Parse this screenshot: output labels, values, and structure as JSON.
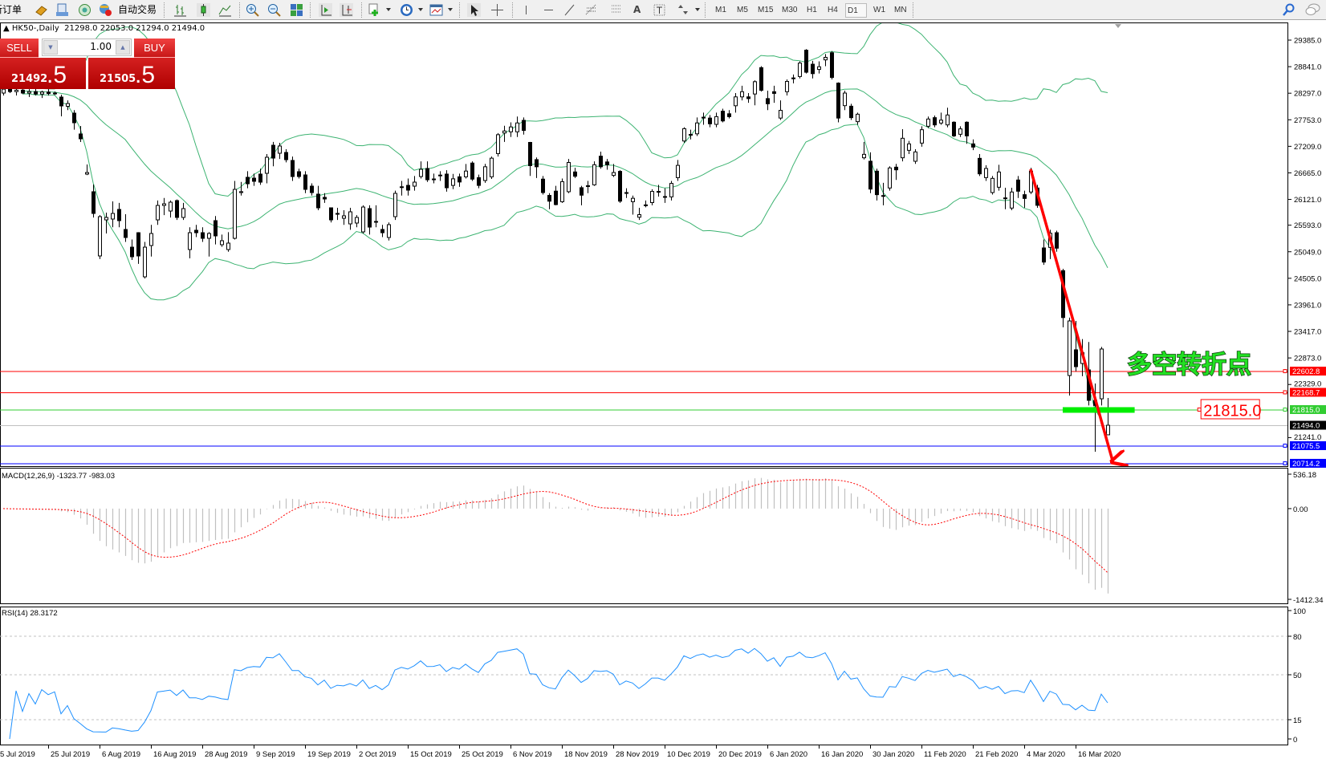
{
  "toolbar": {
    "new_order": "新订单",
    "auto_trade": "自动交易",
    "icons": [
      "gold-icon",
      "history-center-icon",
      "signal-icon",
      "auto-trade-icon",
      "bar-chart-icon",
      "candlestick-icon",
      "line-chart-icon",
      "zoom-in-icon",
      "zoom-out-icon",
      "tile-windows-icon",
      "auto-scroll-icon",
      "chart-shift-icon",
      "indicators-icon",
      "periods-icon",
      "templates-icon",
      "cursor-icon",
      "crosshair-icon",
      "vertical-line-icon",
      "horizontal-line-icon",
      "trendline-icon",
      "fibonacci-icon",
      "fibo-fan-icon",
      "text-icon",
      "text-label-icon",
      "arrows-icon",
      "search-icon",
      "chat-icon"
    ],
    "timeframes": [
      "M1",
      "M5",
      "M15",
      "M30",
      "H1",
      "H4",
      "D1",
      "W1",
      "MN"
    ],
    "active_timeframe": "D1"
  },
  "chart": {
    "symbol": "HK50-,Daily",
    "open": "21298.0",
    "high": "22053.0",
    "low": "21294.0",
    "close": "21494.0"
  },
  "trade_panel": {
    "sell_label": "SELL",
    "buy_label": "BUY",
    "volume": "1.00",
    "sell_main": "21492",
    "sell_frac": ".5",
    "buy_main": "21505",
    "buy_frac": ".5",
    "color": "#d01818"
  },
  "chart_data": {
    "type": "candlestick",
    "timeframe": "Daily",
    "price_ticks": [
      29385.0,
      28841.0,
      28297.0,
      27753.0,
      27209.0,
      26665.0,
      26121.0,
      25593.0,
      25049.0,
      24505.0,
      23961.0,
      23417.0,
      22873.0,
      22329.0,
      21241.0
    ],
    "price_tick_labels": [
      "29385.0",
      "28841.0",
      "28297.0",
      "27753.0",
      "27209.0",
      "26665.0",
      "26121.0",
      "25593.0",
      "25049.0",
      "24505.0",
      "23961.0",
      "23417.0",
      "22873.0",
      "22329.0",
      "21241.0"
    ],
    "x_tick_labels": [
      "5 Jul 2019",
      "25 Jul 2019",
      "6 Aug 2019",
      "16 Aug 2019",
      "28 Aug 2019",
      "9 Sep 2019",
      "19 Sep 2019",
      "2 Oct 2019",
      "15 Oct 2019",
      "25 Oct 2019",
      "6 Nov 2019",
      "18 Nov 2019",
      "28 Nov 2019",
      "10 Dec 2019",
      "20 Dec 2019",
      "6 Jan 2020",
      "16 Jan 2020",
      "30 Jan 2020",
      "11 Feb 2020",
      "21 Feb 2020",
      "4 Mar 2020",
      "16 Mar 2020"
    ],
    "bars_per_x_tick": 8,
    "candles_ohlc": [
      [
        28300,
        28420,
        28250,
        28380
      ],
      [
        28380,
        28450,
        28300,
        28330
      ],
      [
        28330,
        28400,
        28250,
        28360
      ],
      [
        28360,
        28420,
        28280,
        28300
      ],
      [
        28300,
        28380,
        28220,
        28330
      ],
      [
        28330,
        28400,
        28250,
        28280
      ],
      [
        28280,
        28350,
        28200,
        28320
      ],
      [
        28320,
        28380,
        28250,
        28290
      ],
      [
        28290,
        28330,
        28260,
        28300
      ],
      [
        28218,
        28267,
        27823,
        28037
      ],
      [
        28029,
        28150,
        27950,
        28086
      ],
      [
        27889,
        27950,
        27550,
        27692
      ],
      [
        27462,
        27626,
        27297,
        27363
      ],
      [
        26640,
        26837,
        26620,
        26672
      ],
      [
        26278,
        26426,
        25750,
        25834
      ],
      [
        24963,
        25800,
        24900,
        25768
      ],
      [
        25702,
        25850,
        25423,
        25752
      ],
      [
        25719,
        26080,
        25550,
        25834
      ],
      [
        25916,
        26050,
        25550,
        25686
      ],
      [
        25505,
        25817,
        25250,
        25341
      ],
      [
        25143,
        25300,
        24880,
        24946
      ],
      [
        25439,
        25450,
        24800,
        24963
      ],
      [
        24535,
        25250,
        24500,
        25143
      ],
      [
        25176,
        25600,
        24950,
        25423
      ],
      [
        25702,
        26100,
        25600,
        25998
      ],
      [
        25998,
        26150,
        25800,
        26031
      ],
      [
        25883,
        26100,
        25750,
        26064
      ],
      [
        26097,
        26120,
        25700,
        25752
      ],
      [
        25752,
        26050,
        25700,
        25933
      ],
      [
        25094,
        25550,
        24913,
        25439
      ],
      [
        25489,
        25600,
        25350,
        25439
      ],
      [
        25439,
        25550,
        25250,
        25324
      ],
      [
        25324,
        25450,
        24950,
        25423
      ],
      [
        25686,
        25780,
        25200,
        25374
      ],
      [
        25193,
        25400,
        25150,
        25275
      ],
      [
        25094,
        25450,
        25050,
        25226
      ],
      [
        25324,
        26500,
        25300,
        26327
      ],
      [
        26261,
        26480,
        26200,
        26280
      ],
      [
        26574,
        26700,
        26350,
        26442
      ],
      [
        26557,
        26650,
        26400,
        26492
      ],
      [
        26640,
        26750,
        26420,
        26475
      ],
      [
        26656,
        27050,
        26450,
        26985
      ],
      [
        27231,
        27300,
        26800,
        26968
      ],
      [
        27067,
        27280,
        26950,
        27215
      ],
      [
        27083,
        27150,
        26880,
        26935
      ],
      [
        26919,
        27000,
        26500,
        26590
      ],
      [
        26689,
        26750,
        26550,
        26590
      ],
      [
        26623,
        26700,
        26250,
        26327
      ],
      [
        26393,
        26450,
        26200,
        26261
      ],
      [
        26229,
        26400,
        25900,
        25949
      ],
      [
        26163,
        26250,
        26050,
        26130
      ],
      [
        25949,
        25950,
        25650,
        25702
      ],
      [
        25834,
        25950,
        25700,
        25820
      ],
      [
        25735,
        25900,
        25600,
        25785
      ],
      [
        25620,
        25950,
        25500,
        25867
      ],
      [
        25637,
        25800,
        25550,
        25752
      ],
      [
        25456,
        26000,
        25420,
        25965
      ],
      [
        25933,
        26000,
        25400,
        25554
      ],
      [
        25670,
        26000,
        25550,
        25660
      ],
      [
        25505,
        25600,
        25350,
        25439
      ],
      [
        25341,
        25650,
        25280,
        25604
      ],
      [
        25768,
        26300,
        25700,
        26245
      ],
      [
        26376,
        26500,
        26200,
        26380
      ],
      [
        26409,
        26550,
        26200,
        26311
      ],
      [
        26393,
        26600,
        26300,
        26475
      ],
      [
        26590,
        26900,
        26550,
        26738
      ],
      [
        26755,
        26900,
        26480,
        26524
      ],
      [
        26540,
        26650,
        26450,
        26530
      ],
      [
        26620,
        26700,
        26500,
        26610
      ],
      [
        26640,
        26720,
        26280,
        26360
      ],
      [
        26408,
        26643,
        26332,
        26543
      ],
      [
        26584,
        26650,
        26379,
        26478
      ],
      [
        26584,
        26848,
        26550,
        26702
      ],
      [
        26866,
        26900,
        26500,
        26537
      ],
      [
        26567,
        26630,
        26350,
        26408
      ],
      [
        26508,
        26850,
        26460,
        26790
      ],
      [
        26584,
        27000,
        26540,
        26966
      ],
      [
        27060,
        27480,
        27000,
        27447
      ],
      [
        27482,
        27630,
        27300,
        27523
      ],
      [
        27506,
        27700,
        27400,
        27606
      ],
      [
        27506,
        27820,
        27400,
        27688
      ],
      [
        27741,
        27800,
        27450,
        27535
      ],
      [
        27289,
        27300,
        26602,
        26813
      ],
      [
        26936,
        26980,
        26560,
        26790
      ],
      [
        26537,
        26600,
        26220,
        26261
      ],
      [
        26203,
        26250,
        25920,
        26085
      ],
      [
        26291,
        26400,
        26000,
        26015
      ],
      [
        26074,
        26550,
        26050,
        26485
      ],
      [
        26279,
        26950,
        26250,
        26878
      ],
      [
        26684,
        26770,
        26560,
        26596
      ],
      [
        26361,
        26400,
        26000,
        26208
      ],
      [
        26400,
        26500,
        26250,
        26402
      ],
      [
        26420,
        26900,
        26400,
        26831
      ],
      [
        27007,
        27100,
        26750,
        26790
      ],
      [
        26889,
        26950,
        26730,
        26831
      ],
      [
        26613,
        26848,
        26580,
        26672
      ],
      [
        26696,
        26720,
        26050,
        26085
      ],
      [
        26250,
        26350,
        26150,
        26261
      ],
      [
        26074,
        26200,
        25809,
        26144
      ],
      [
        25756,
        25950,
        25700,
        25809
      ],
      [
        26000,
        26100,
        25960,
        26009
      ],
      [
        26056,
        26330,
        26000,
        26285
      ],
      [
        26280,
        26420,
        26180,
        26285
      ],
      [
        26180,
        26350,
        26050,
        26173
      ],
      [
        26173,
        26500,
        26100,
        26449
      ],
      [
        26567,
        26930,
        26500,
        26819
      ],
      [
        27318,
        27600,
        27280,
        27570
      ],
      [
        27450,
        27550,
        27350,
        27453
      ],
      [
        27465,
        27800,
        27420,
        27688
      ],
      [
        27805,
        27900,
        27650,
        27800
      ],
      [
        27788,
        27850,
        27600,
        27670
      ],
      [
        27659,
        27900,
        27600,
        27817
      ],
      [
        27929,
        27980,
        27700,
        27729
      ],
      [
        27876,
        27950,
        27780,
        27817
      ],
      [
        28040,
        28300,
        27900,
        28222
      ],
      [
        28222,
        28450,
        28150,
        28328
      ],
      [
        28222,
        28300,
        28100,
        28187
      ],
      [
        28281,
        28560,
        28050,
        28533
      ],
      [
        28821,
        28850,
        28330,
        28357
      ],
      [
        28187,
        28350,
        27950,
        28081
      ],
      [
        28328,
        28450,
        28100,
        28293
      ],
      [
        27788,
        28150,
        27750,
        27946
      ],
      [
        28328,
        28580,
        28250,
        28539
      ],
      [
        28600,
        28680,
        28500,
        28610
      ],
      [
        28639,
        28950,
        28600,
        28915
      ],
      [
        29179,
        29200,
        28700,
        28727
      ],
      [
        28891,
        28960,
        28600,
        28698
      ],
      [
        28786,
        28950,
        28700,
        28839
      ],
      [
        28980,
        29100,
        28850,
        29032
      ],
      [
        29126,
        29160,
        28580,
        28621
      ],
      [
        28504,
        28520,
        27700,
        27788
      ],
      [
        28042,
        28350,
        27950,
        28300
      ],
      [
        28031,
        28080,
        27750,
        27796
      ],
      [
        27714,
        27900,
        27650,
        27867
      ],
      [
        26974,
        27300,
        26940,
        27045
      ],
      [
        26903,
        27085,
        26250,
        26333
      ],
      [
        26700,
        26750,
        26100,
        26218
      ],
      [
        26200,
        26460,
        26000,
        26196
      ],
      [
        26355,
        26800,
        26300,
        26766
      ],
      [
        26782,
        26850,
        26520,
        26727
      ],
      [
        26974,
        27560,
        26900,
        27374
      ],
      [
        27127,
        27320,
        27050,
        27259
      ],
      [
        26903,
        27150,
        26850,
        27094
      ],
      [
        27275,
        27620,
        27200,
        27549
      ],
      [
        27620,
        27820,
        27580,
        27768
      ],
      [
        27796,
        27840,
        27600,
        27648
      ],
      [
        27686,
        27900,
        27650,
        27746
      ],
      [
        27648,
        28000,
        27600,
        27851
      ],
      [
        27703,
        27720,
        27400,
        27423
      ],
      [
        27456,
        27620,
        27400,
        27566
      ],
      [
        27703,
        27720,
        27260,
        27423
      ],
      [
        27259,
        27350,
        27130,
        27193
      ],
      [
        26963,
        27050,
        26600,
        26645
      ],
      [
        26568,
        26820,
        26500,
        26755
      ],
      [
        26262,
        26600,
        26220,
        26552
      ],
      [
        26371,
        26830,
        26300,
        26683
      ],
      [
        26150,
        26360,
        25920,
        26152
      ],
      [
        25944,
        26360,
        25900,
        26273
      ],
      [
        26519,
        26600,
        26150,
        26289
      ],
      [
        26218,
        26300,
        25950,
        26141
      ],
      [
        26273,
        26770,
        26230,
        26700
      ],
      [
        26355,
        26420,
        25950,
        26000
      ],
      [
        25127,
        25300,
        24780,
        24837
      ],
      [
        25138,
        25500,
        24900,
        25428
      ],
      [
        25439,
        25480,
        25050,
        25122
      ],
      [
        24661,
        24700,
        23500,
        23700
      ],
      [
        22513,
        23700,
        22102,
        23631
      ],
      [
        23040,
        23631,
        22600,
        22694
      ],
      [
        22760,
        23260,
        22500,
        22980
      ],
      [
        22628,
        23200,
        21900,
        22004
      ],
      [
        22004,
        22349,
        20952,
        21900
      ],
      [
        22036,
        23100,
        21900,
        23056
      ],
      [
        21298,
        22053,
        21294,
        21494
      ]
    ],
    "bollinger": {
      "period": 20,
      "deviation": 2,
      "color": "#3cb371"
    },
    "levels": [
      {
        "value": 22602.8,
        "label": "22602.8",
        "color": "#ff0000"
      },
      {
        "value": 22168.7,
        "label": "22168.7",
        "color": "#ff0000"
      },
      {
        "value": 21815.0,
        "label": "21815.0",
        "color": "#32cd32"
      },
      {
        "value": 21494.0,
        "label": "21494.0",
        "color": "#c0c0c0",
        "label_bg": "#000000"
      },
      {
        "value": 21075.5,
        "label": "21075.5",
        "color": "#0000ff"
      },
      {
        "value": 20714.2,
        "label": "20714.2",
        "color": "#0000ff"
      }
    ],
    "annotations": {
      "text": "多空转折点",
      "text_color": "#22e022",
      "text_bar": 175,
      "text_price": 22560,
      "price_box": "21815.0",
      "price_box_color": "#ff0000",
      "price_box_bar": 186.4,
      "price_box_price": 21815.0,
      "green_band": {
        "from_bar": 165,
        "to_bar": 176.2,
        "price": 21815.0,
        "color": "#00ee00"
      },
      "trend_arrow": {
        "from_bar": 160,
        "from_price": 26740,
        "to_bar": 172.8,
        "to_price": 20750,
        "color": "#ff0000"
      }
    },
    "macd": {
      "label": "MACD(12,26,9) -1323.77 -983.03",
      "fast": 12,
      "slow": 26,
      "signal": 9,
      "axis_max": 536.18,
      "axis_min": -1412.34,
      "tick_labels": [
        "536.18",
        "0.00",
        "-1412.34"
      ],
      "hist_color": "#c0c0c0",
      "signal_color": "#ff0000"
    },
    "rsi": {
      "label": "RSI(14) 28.3172",
      "period": 14,
      "levels": [
        80,
        50,
        15
      ],
      "tick_labels": [
        "100",
        "80",
        "50",
        "15",
        "0"
      ],
      "color": "#1e90ff"
    }
  }
}
